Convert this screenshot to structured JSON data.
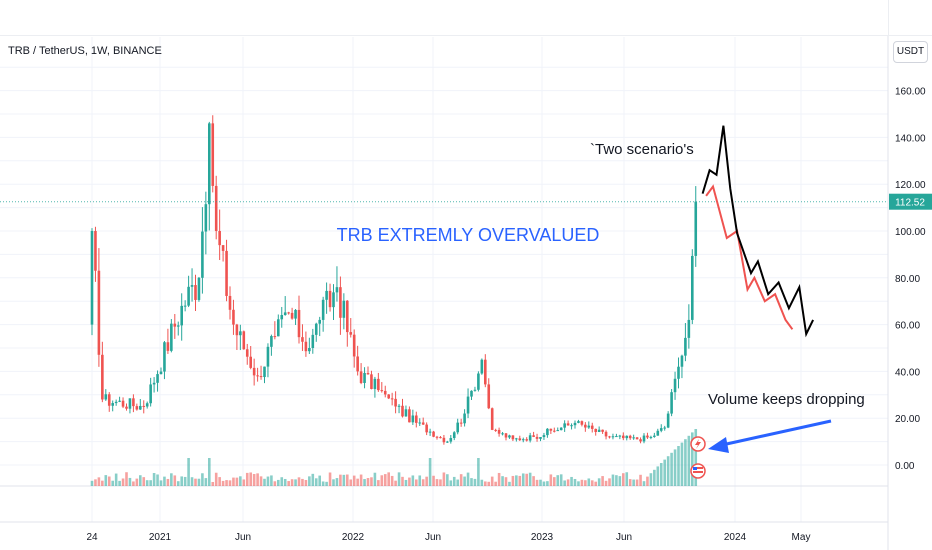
{
  "header": {
    "symbol_title": "TRB / TetherUS, 1W, BINANCE",
    "currency_label": "USDT"
  },
  "price": {
    "last": 112.52,
    "last_label": "112.52"
  },
  "annotations": {
    "overvalued_label": "TRB EXTREMLY OVERVALUED",
    "scenarios_label": "`Two scenario's",
    "volume_label": "Volume keeps dropping"
  },
  "colors": {
    "up": "#26a69a",
    "down": "#ef5350",
    "annotation_blue": "#2962ff",
    "price_line": "#26a69a",
    "scenario_red": "#ef5350",
    "scenario_black": "#000000"
  },
  "chart_data": {
    "type": "candlestick",
    "title": "TRB / TetherUS, 1W, BINANCE",
    "y_axis": {
      "ticks": [
        0,
        20,
        40,
        60,
        80,
        100,
        120,
        140,
        160
      ],
      "tick_labels": [
        "0.00",
        "20.00",
        "40.00",
        "60.00",
        "80.00",
        "100.00",
        "120.00",
        "140.00",
        "160.00"
      ],
      "range": [
        -10,
        170
      ],
      "position": "right"
    },
    "x_axis": {
      "tick_labels": [
        "24",
        "2021",
        "Jun",
        "2022",
        "Jun",
        "2023",
        "Jun",
        "2024",
        "May"
      ]
    },
    "candle_anchors": [
      {
        "i": 0,
        "close": 100
      },
      {
        "i": 3,
        "close": 28
      },
      {
        "i": 15,
        "close": 25
      },
      {
        "i": 26,
        "close": 68
      },
      {
        "i": 31,
        "close": 80
      },
      {
        "i": 34,
        "close": 146
      },
      {
        "i": 36,
        "close": 100
      },
      {
        "i": 41,
        "close": 60
      },
      {
        "i": 48,
        "close": 38
      },
      {
        "i": 53,
        "close": 55
      },
      {
        "i": 57,
        "close": 65
      },
      {
        "i": 63,
        "close": 50
      },
      {
        "i": 66,
        "close": 62
      },
      {
        "i": 71,
        "close": 76
      },
      {
        "i": 77,
        "close": 40
      },
      {
        "i": 83,
        "close": 32
      },
      {
        "i": 88,
        "close": 25
      },
      {
        "i": 94,
        "close": 18
      },
      {
        "i": 103,
        "close": 10
      },
      {
        "i": 108,
        "close": 22
      },
      {
        "i": 113,
        "close": 45
      },
      {
        "i": 116,
        "close": 15
      },
      {
        "i": 122,
        "close": 11
      },
      {
        "i": 128,
        "close": 12
      },
      {
        "i": 140,
        "close": 18
      },
      {
        "i": 150,
        "close": 12
      },
      {
        "i": 158,
        "close": 11
      },
      {
        "i": 162,
        "close": 12
      },
      {
        "i": 166,
        "close": 16
      },
      {
        "i": 170,
        "close": 42
      },
      {
        "i": 173,
        "close": 62
      },
      {
        "i": 175,
        "close": 112.52
      }
    ],
    "scenarios": [
      {
        "name": "",
        "color": "#ef5350",
        "points": [
          [
            178,
            115
          ],
          [
            180,
            119
          ],
          [
            184,
            97
          ],
          [
            187,
            100
          ],
          [
            190,
            75
          ],
          [
            192,
            80
          ],
          [
            195,
            70
          ],
          [
            198,
            73
          ],
          [
            201,
            62
          ],
          [
            203,
            58
          ]
        ]
      },
      {
        "name": "",
        "color": "#000000",
        "points": [
          [
            177,
            116
          ],
          [
            179,
            126
          ],
          [
            181,
            124
          ],
          [
            183,
            145
          ],
          [
            185,
            118
          ],
          [
            187,
            99
          ],
          [
            191,
            82
          ],
          [
            193,
            87
          ],
          [
            196,
            73
          ],
          [
            199,
            78
          ],
          [
            202,
            67
          ],
          [
            205,
            76
          ],
          [
            207,
            56
          ],
          [
            209,
            62
          ]
        ]
      }
    ]
  }
}
